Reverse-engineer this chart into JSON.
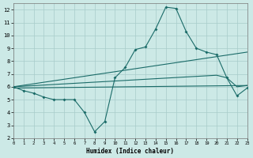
{
  "xlabel": "Humidex (Indice chaleur)",
  "bg_color": "#cce9e6",
  "grid_color": "#a8ccca",
  "line_color": "#1a6b68",
  "xlim": [
    0,
    23
  ],
  "ylim": [
    2,
    12.5
  ],
  "xticks": [
    0,
    1,
    2,
    3,
    4,
    5,
    6,
    7,
    8,
    9,
    10,
    11,
    12,
    13,
    14,
    15,
    16,
    17,
    18,
    19,
    20,
    21,
    22,
    23
  ],
  "yticks": [
    2,
    3,
    4,
    5,
    6,
    7,
    8,
    9,
    10,
    11,
    12
  ],
  "lines": [
    {
      "x": [
        0,
        1,
        2,
        3,
        4,
        5,
        6,
        7,
        8,
        9,
        10,
        11,
        12,
        13,
        14,
        15,
        16,
        17,
        18,
        19,
        20,
        21,
        22,
        23
      ],
      "y": [
        6.0,
        5.7,
        5.5,
        5.2,
        5.0,
        5.0,
        5.0,
        4.0,
        2.5,
        3.3,
        6.7,
        7.5,
        8.9,
        9.1,
        10.5,
        12.2,
        12.1,
        10.3,
        9.0,
        8.7,
        8.5,
        6.7,
        5.3,
        5.9
      ],
      "marker": true
    },
    {
      "x": [
        0,
        23
      ],
      "y": [
        6.0,
        8.7
      ],
      "marker": false
    },
    {
      "x": [
        0,
        20,
        21,
        22,
        23
      ],
      "y": [
        6.0,
        6.9,
        6.7,
        6.0,
        6.1
      ],
      "marker": false
    },
    {
      "x": [
        0,
        23
      ],
      "y": [
        5.9,
        6.1
      ],
      "marker": false
    }
  ]
}
